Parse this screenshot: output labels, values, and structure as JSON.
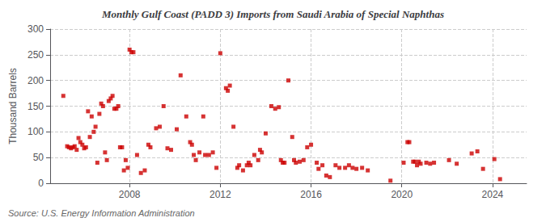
{
  "chart_data": {
    "type": "scatter",
    "title": "Monthly Gulf Coast (PADD 3) Imports from Saudi Arabia of Special Naphthas",
    "ylabel": "Thousand Barrels",
    "annotation": "Source: U.S. Energy Information Administration",
    "color": "#cc0000",
    "marker": "square",
    "grid": true,
    "xlim": [
      2004.5,
      2025.5
    ],
    "xticks": [
      2008,
      2012,
      2016,
      2020,
      2024
    ],
    "ylim": [
      0,
      300
    ],
    "yticks": [
      0,
      50,
      100,
      150,
      200,
      250,
      300
    ],
    "x": [
      2005.08,
      2005.25,
      2005.33,
      2005.42,
      2005.5,
      2005.58,
      2005.67,
      2005.75,
      2005.83,
      2005.92,
      2006.0,
      2006.08,
      2006.17,
      2006.25,
      2006.33,
      2006.42,
      2006.5,
      2006.58,
      2006.67,
      2006.75,
      2006.83,
      2006.92,
      2007.0,
      2007.08,
      2007.17,
      2007.25,
      2007.33,
      2007.42,
      2007.5,
      2007.58,
      2007.67,
      2007.75,
      2007.83,
      2007.92,
      2008.0,
      2008.08,
      2008.17,
      2008.33,
      2008.5,
      2008.67,
      2008.83,
      2008.92,
      2009.17,
      2009.33,
      2009.5,
      2009.67,
      2009.83,
      2010.08,
      2010.25,
      2010.5,
      2010.67,
      2010.75,
      2010.83,
      2010.92,
      2011.08,
      2011.25,
      2011.33,
      2011.5,
      2011.67,
      2011.83,
      2012.0,
      2012.25,
      2012.33,
      2012.42,
      2012.58,
      2012.75,
      2012.83,
      2013.0,
      2013.17,
      2013.25,
      2013.33,
      2013.5,
      2013.67,
      2013.75,
      2013.83,
      2014.0,
      2014.25,
      2014.42,
      2014.58,
      2014.67,
      2014.75,
      2014.83,
      2015.0,
      2015.17,
      2015.25,
      2015.33,
      2015.5,
      2015.67,
      2015.83,
      2016.0,
      2016.25,
      2016.33,
      2016.5,
      2016.67,
      2016.83,
      2017.08,
      2017.25,
      2017.5,
      2017.67,
      2017.83,
      2018.0,
      2018.25,
      2018.5,
      2019.5,
      2020.08,
      2020.25,
      2020.33,
      2020.5,
      2020.58,
      2020.67,
      2020.75,
      2020.83,
      2021.08,
      2021.25,
      2021.42,
      2022.08,
      2022.42,
      2023.08,
      2023.33,
      2023.58,
      2024.08,
      2024.33
    ],
    "values": [
      170,
      72,
      70,
      68,
      70,
      72,
      65,
      88,
      80,
      75,
      68,
      70,
      140,
      90,
      130,
      100,
      110,
      40,
      135,
      155,
      150,
      60,
      45,
      160,
      165,
      170,
      145,
      145,
      150,
      70,
      70,
      25,
      45,
      30,
      260,
      255,
      255,
      55,
      20,
      25,
      75,
      70,
      107,
      110,
      150,
      68,
      65,
      105,
      210,
      130,
      80,
      75,
      55,
      45,
      60,
      130,
      55,
      55,
      60,
      30,
      253,
      185,
      180,
      190,
      110,
      30,
      35,
      25,
      35,
      40,
      35,
      55,
      45,
      65,
      60,
      97,
      150,
      145,
      148,
      45,
      40,
      40,
      200,
      90,
      45,
      40,
      42,
      45,
      70,
      75,
      40,
      28,
      35,
      15,
      12,
      35,
      30,
      30,
      35,
      30,
      28,
      30,
      25,
      5,
      40,
      80,
      80,
      42,
      42,
      35,
      42,
      38,
      40,
      38,
      40,
      45,
      38,
      58,
      62,
      28,
      47,
      8
    ]
  }
}
